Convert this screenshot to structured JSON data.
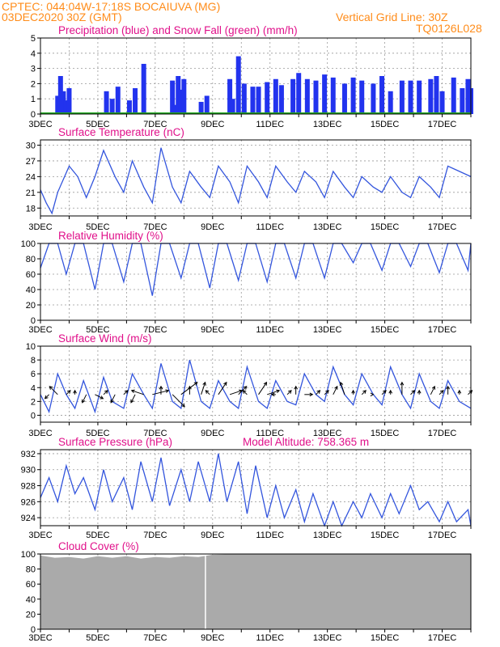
{
  "header": {
    "line1": "CPTEC:   044:04W-17:18S   BOCAIUVA (MG)",
    "line2": "03DEC2020 30Z (GMT)",
    "grid_note": "Vertical Grid Line: 30Z",
    "model_id": "TQ0126L028"
  },
  "x_axis": {
    "start_day": 3,
    "end_day": 18,
    "tick_days": [
      3,
      5,
      7,
      9,
      11,
      13,
      15,
      17
    ],
    "tick_labels": [
      "3DEC",
      "5DEC",
      "7DEC",
      "9DEC",
      "11DEC",
      "13DEC",
      "15DEC",
      "17DEC"
    ]
  },
  "colors": {
    "line": "#3355dd",
    "precip": "#2233ee",
    "snow": "#22aa22",
    "cloud": "#aaaaaa",
    "title": "#e0108a",
    "header": "#ff8c1a"
  },
  "chart_data": [
    {
      "id": "precip",
      "type": "bar",
      "title": "Precipitation (blue) and Snow Fall (green) (mm/h)",
      "ylim": [
        0,
        5
      ],
      "yticks": [
        0,
        1,
        2,
        3,
        4,
        5
      ],
      "series": [
        {
          "name": "Precipitation",
          "x": [
            3.6,
            3.7,
            3.8,
            3.9,
            4.0,
            5.3,
            5.5,
            5.7,
            6.1,
            6.3,
            6.6,
            7.6,
            7.7,
            7.8,
            7.9,
            8.0,
            8.6,
            8.8,
            9.6,
            9.7,
            9.9,
            10.1,
            10.4,
            10.6,
            10.9,
            11.2,
            11.4,
            11.8,
            12.0,
            12.3,
            12.6,
            12.9,
            13.2,
            13.6,
            13.9,
            14.2,
            14.6,
            14.9,
            15.2,
            15.6,
            15.9,
            16.2,
            16.6,
            16.8,
            17.0,
            17.4,
            17.7,
            17.9,
            18.0
          ],
          "values": [
            1.2,
            2.5,
            1.5,
            0.9,
            1.7,
            1.5,
            1.0,
            1.8,
            0.9,
            1.7,
            3.3,
            2.2,
            0.6,
            2.5,
            1.6,
            2.3,
            0.8,
            1.2,
            2.3,
            1.0,
            3.8,
            2.0,
            1.8,
            1.8,
            2.1,
            2.3,
            1.9,
            2.3,
            2.7,
            2.3,
            2.2,
            2.6,
            2.4,
            2.0,
            2.4,
            2.2,
            2.0,
            2.5,
            1.5,
            2.2,
            2.2,
            2.2,
            2.3,
            2.5,
            1.5,
            2.4,
            1.7,
            2.3,
            1.7
          ]
        },
        {
          "name": "Snow Fall",
          "values": [
            0
          ]
        }
      ]
    },
    {
      "id": "temp",
      "type": "line",
      "title": "Surface Temperature (nC)",
      "ylim": [
        16.5,
        31
      ],
      "yticks": [
        18,
        21,
        24,
        27,
        30
      ],
      "x": [
        3.0,
        3.2,
        3.4,
        3.6,
        4.0,
        4.3,
        4.6,
        4.9,
        5.2,
        5.6,
        5.9,
        6.2,
        6.6,
        6.9,
        7.2,
        7.6,
        7.9,
        8.2,
        8.6,
        8.9,
        9.2,
        9.6,
        9.9,
        10.2,
        10.6,
        10.9,
        11.2,
        11.6,
        11.9,
        12.2,
        12.6,
        12.9,
        13.2,
        13.6,
        13.9,
        14.2,
        14.6,
        14.9,
        15.2,
        15.6,
        15.9,
        16.2,
        16.6,
        16.9,
        17.2,
        17.6,
        18.0
      ],
      "values": [
        21.5,
        19,
        17,
        21,
        26,
        24,
        20,
        24,
        29,
        24,
        21,
        27,
        22,
        19,
        29.5,
        22,
        19,
        25,
        22,
        20,
        26,
        23,
        19,
        26,
        23,
        20,
        26,
        23,
        21,
        25,
        23,
        20,
        25,
        22,
        20,
        24,
        22,
        21,
        24,
        21,
        20,
        24,
        22,
        20,
        26,
        25,
        24
      ]
    },
    {
      "id": "rh",
      "type": "line",
      "title": "Relative Humidity (%)",
      "ylim": [
        0,
        100
      ],
      "yticks": [
        0,
        20,
        40,
        60,
        80,
        100
      ],
      "x": [
        3.0,
        3.3,
        3.6,
        3.9,
        4.2,
        4.5,
        4.9,
        5.2,
        5.5,
        5.9,
        6.2,
        6.5,
        6.9,
        7.2,
        7.5,
        7.9,
        8.2,
        8.5,
        8.9,
        9.2,
        9.5,
        9.9,
        10.2,
        10.5,
        10.9,
        11.2,
        11.5,
        11.9,
        12.2,
        12.5,
        12.9,
        13.2,
        13.5,
        13.9,
        14.2,
        14.5,
        14.9,
        15.2,
        15.5,
        15.9,
        16.2,
        16.5,
        16.9,
        17.2,
        17.5,
        17.9,
        18.0
      ],
      "values": [
        68,
        100,
        100,
        60,
        100,
        100,
        40,
        100,
        100,
        50,
        100,
        100,
        32,
        100,
        100,
        55,
        100,
        100,
        42,
        100,
        100,
        52,
        100,
        100,
        50,
        100,
        100,
        55,
        100,
        100,
        55,
        100,
        100,
        75,
        100,
        100,
        65,
        100,
        100,
        70,
        100,
        100,
        62,
        100,
        100,
        65,
        100
      ]
    },
    {
      "id": "wind",
      "type": "line",
      "title": "Surface Wind (m/s)",
      "ylim": [
        -1,
        10
      ],
      "yticks": [
        0,
        2,
        4,
        6,
        8,
        10
      ],
      "x": [
        3.0,
        3.3,
        3.6,
        3.9,
        4.2,
        4.5,
        4.9,
        5.2,
        5.5,
        5.9,
        6.2,
        6.6,
        6.9,
        7.2,
        7.6,
        7.9,
        8.2,
        8.6,
        8.9,
        9.2,
        9.6,
        9.9,
        10.2,
        10.6,
        10.9,
        11.2,
        11.6,
        11.9,
        12.2,
        12.6,
        12.9,
        13.2,
        13.6,
        13.9,
        14.2,
        14.6,
        14.9,
        15.2,
        15.6,
        15.9,
        16.2,
        16.6,
        16.9,
        17.2,
        17.6,
        18.0
      ],
      "values": [
        3,
        0.5,
        6,
        3,
        1,
        5,
        0.5,
        5.5,
        2,
        1,
        6,
        3,
        1,
        7.5,
        2,
        1,
        8,
        2,
        1,
        5,
        2,
        1,
        7,
        2,
        1,
        5,
        2,
        1.5,
        6,
        3,
        2,
        7,
        3,
        1.5,
        6,
        3,
        1.5,
        7,
        3,
        1,
        6,
        2,
        1,
        5,
        2,
        1
      ],
      "arrows_x": [
        3.3,
        3.6,
        3.9,
        4.2,
        4.6,
        4.9,
        5.2,
        5.6,
        5.9,
        6.3,
        6.6,
        6.9,
        7.2,
        7.6,
        7.9,
        8.2,
        8.6,
        8.9,
        9.2,
        9.6,
        9.9,
        10.2,
        10.6,
        10.9,
        11.2,
        11.6,
        11.9,
        12.2,
        12.6,
        12.9,
        13.2,
        13.6,
        13.9,
        14.2,
        14.6,
        14.9,
        15.2,
        15.6,
        15.9,
        16.2,
        16.6,
        16.9,
        17.2,
        17.6,
        17.9
      ],
      "arrows_u": [
        -1,
        -2,
        1,
        0,
        -1,
        2,
        1,
        -1,
        1,
        -1,
        -3,
        4,
        0,
        3,
        4,
        0,
        1,
        -1,
        2,
        3,
        2,
        -1,
        2,
        3,
        -1,
        1,
        0,
        2,
        1,
        1,
        1,
        -1,
        0,
        1,
        0,
        1,
        0,
        0,
        1,
        0,
        1,
        1,
        0,
        0,
        1
      ],
      "arrows_v": [
        -1,
        2,
        1,
        1,
        -2,
        -1,
        1,
        -2,
        1,
        -2,
        1,
        1,
        2,
        -3,
        3,
        2,
        3,
        1,
        3,
        1,
        2,
        1,
        3,
        1,
        0,
        1,
        2,
        0,
        1,
        1,
        2,
        3,
        1,
        1,
        0,
        1,
        1,
        3,
        1,
        1,
        2,
        1,
        2,
        1,
        1
      ]
    },
    {
      "id": "pres",
      "type": "line",
      "title": "Surface Pressure (hPa)",
      "subtitle": "Model Altitude: 758.365  m",
      "ylim": [
        923,
        932.5
      ],
      "yticks": [
        924,
        926,
        928,
        930,
        932
      ],
      "x": [
        3.0,
        3.3,
        3.6,
        3.9,
        4.2,
        4.5,
        4.9,
        5.2,
        5.5,
        5.9,
        6.2,
        6.5,
        6.9,
        7.2,
        7.5,
        7.9,
        8.2,
        8.5,
        8.9,
        9.2,
        9.5,
        9.9,
        10.2,
        10.5,
        10.9,
        11.2,
        11.5,
        11.9,
        12.2,
        12.5,
        12.9,
        13.2,
        13.5,
        13.9,
        14.2,
        14.5,
        14.9,
        15.2,
        15.5,
        15.9,
        16.2,
        16.5,
        16.9,
        17.2,
        17.5,
        17.9,
        18.0
      ],
      "values": [
        926.5,
        929,
        926,
        930.5,
        927,
        929,
        925,
        930,
        926,
        929,
        925,
        931,
        926,
        931.5,
        925.5,
        930,
        926,
        931,
        926,
        932,
        926,
        931,
        924.5,
        930.5,
        924,
        928,
        924,
        927.5,
        923.5,
        927,
        923,
        926,
        923,
        926,
        924,
        927,
        924,
        927,
        924.5,
        928,
        925,
        926,
        923.5,
        926,
        923.5,
        925,
        923
      ]
    },
    {
      "id": "cloud",
      "type": "area",
      "title": "Cloud Cover (%)",
      "ylim": [
        0,
        100
      ],
      "yticks": [
        0,
        20,
        40,
        60,
        80,
        100
      ],
      "x": [
        3.0,
        3.5,
        4.0,
        4.5,
        5.0,
        5.5,
        6.0,
        6.5,
        7.0,
        7.5,
        8.0,
        8.5,
        9.0,
        10.0,
        11.0,
        12.0,
        13.0,
        14.0,
        15.0,
        16.0,
        17.0,
        18.0
      ],
      "values": [
        98,
        95,
        96,
        94,
        97,
        95,
        97,
        94,
        96,
        95,
        97,
        96,
        99,
        100,
        100,
        100,
        100,
        100,
        100,
        100,
        100,
        100
      ],
      "gap_day": 8.75
    }
  ]
}
